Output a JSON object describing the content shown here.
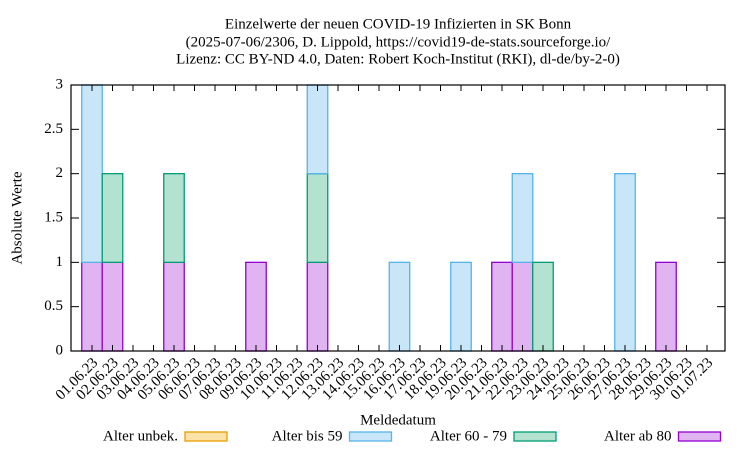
{
  "chart_data": {
    "type": "bar",
    "stacked": true,
    "title": [
      "Einzelwerte der neuen COVID-19 Infizierten in SK Bonn",
      "(2025-07-06/2306, D. Lippold, https://covid19-de-stats.sourceforge.io/",
      "Lizenz: CC BY-ND 4.0, Daten: Robert Koch-Institut (RKI), dl-de/by-2-0)"
    ],
    "xlabel": "Meldedatum",
    "ylabel": "Absolute Werte",
    "categories": [
      "01.06.23",
      "02.06.23",
      "03.06.23",
      "04.06.23",
      "05.06.23",
      "06.06.23",
      "07.06.23",
      "08.06.23",
      "09.06.23",
      "10.06.23",
      "11.06.23",
      "12.06.23",
      "13.06.23",
      "14.06.23",
      "15.06.23",
      "16.06.23",
      "17.06.23",
      "18.06.23",
      "19.06.23",
      "20.06.23",
      "21.06.23",
      "22.06.23",
      "23.06.23",
      "24.06.23",
      "25.06.23",
      "26.06.23",
      "27.06.23",
      "28.06.23",
      "29.06.23",
      "30.06.23",
      "01.07.23"
    ],
    "series": [
      {
        "name": "Alter unbek.",
        "color": "#e69f00",
        "fill": "#fde2a8",
        "values": [
          0,
          0,
          0,
          0,
          0,
          0,
          0,
          0,
          0,
          0,
          0,
          0,
          0,
          0,
          0,
          0,
          0,
          0,
          0,
          0,
          0,
          0,
          0,
          0,
          0,
          0,
          0,
          0,
          0,
          0,
          0
        ]
      },
      {
        "name": "Alter bis 59",
        "color": "#56b4e9",
        "fill": "#c9e5f8",
        "values": [
          2,
          0,
          0,
          0,
          0,
          0,
          0,
          0,
          0,
          0,
          0,
          1,
          0,
          0,
          0,
          1,
          0,
          0,
          1,
          0,
          0,
          1,
          0,
          0,
          0,
          0,
          2,
          0,
          0,
          0,
          0
        ]
      },
      {
        "name": "Alter 60 - 79",
        "color": "#009e73",
        "fill": "#b3e2d1",
        "values": [
          0,
          1,
          0,
          0,
          1,
          0,
          0,
          0,
          0,
          0,
          0,
          1,
          0,
          0,
          0,
          0,
          0,
          0,
          0,
          0,
          0,
          0,
          1,
          0,
          0,
          0,
          0,
          0,
          0,
          0,
          0
        ]
      },
      {
        "name": "Alter ab 80",
        "color": "#9400d3",
        "fill": "#dfb4f1",
        "values": [
          1,
          1,
          0,
          0,
          1,
          0,
          0,
          0,
          1,
          0,
          0,
          1,
          0,
          0,
          0,
          0,
          0,
          0,
          0,
          0,
          1,
          1,
          0,
          0,
          0,
          0,
          0,
          0,
          1,
          0,
          0
        ]
      }
    ],
    "ylim": [
      0,
      3
    ],
    "yticks": [
      0,
      0.5,
      1,
      1.5,
      2,
      2.5,
      3
    ]
  }
}
